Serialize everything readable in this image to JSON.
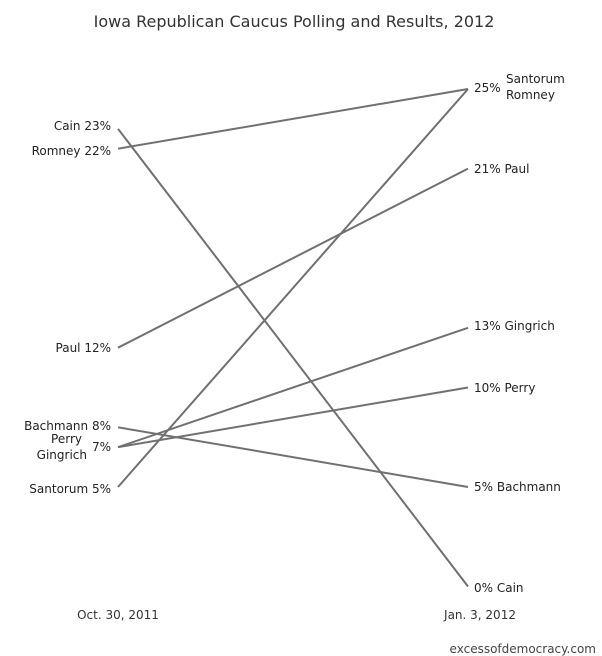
{
  "chart_data": {
    "type": "line",
    "title": "Iowa Republican Caucus Polling and Results, 2012",
    "x": [
      "Oct. 30, 2011",
      "Jan. 3, 2012"
    ],
    "series": [
      {
        "name": "Cain",
        "values": [
          23,
          0
        ]
      },
      {
        "name": "Romney",
        "values": [
          22,
          25
        ]
      },
      {
        "name": "Paul",
        "values": [
          12,
          21
        ]
      },
      {
        "name": "Bachmann",
        "values": [
          8,
          5
        ]
      },
      {
        "name": "Perry",
        "values": [
          7,
          10
        ]
      },
      {
        "name": "Gingrich",
        "values": [
          7,
          13
        ]
      },
      {
        "name": "Santorum",
        "values": [
          5,
          25
        ]
      }
    ],
    "left_labels": [
      {
        "text": "Cain 23%"
      },
      {
        "text": "Romney 22%"
      },
      {
        "text": "Paul 12%"
      },
      {
        "text": "Bachmann 8%"
      },
      {
        "text": "Perry"
      },
      {
        "text": "7%"
      },
      {
        "text": "Gingrich"
      },
      {
        "text": "Santorum 5%"
      }
    ],
    "right_labels": [
      {
        "text": "25%"
      },
      {
        "text": "Santorum"
      },
      {
        "text": "Romney"
      },
      {
        "text": "21% Paul"
      },
      {
        "text": "13% Gingrich"
      },
      {
        "text": "10% Perry"
      },
      {
        "text": "5% Bachmann"
      },
      {
        "text": "0% Cain"
      }
    ],
    "line_color": "#707070"
  },
  "source": "excessofdemocracy.com"
}
